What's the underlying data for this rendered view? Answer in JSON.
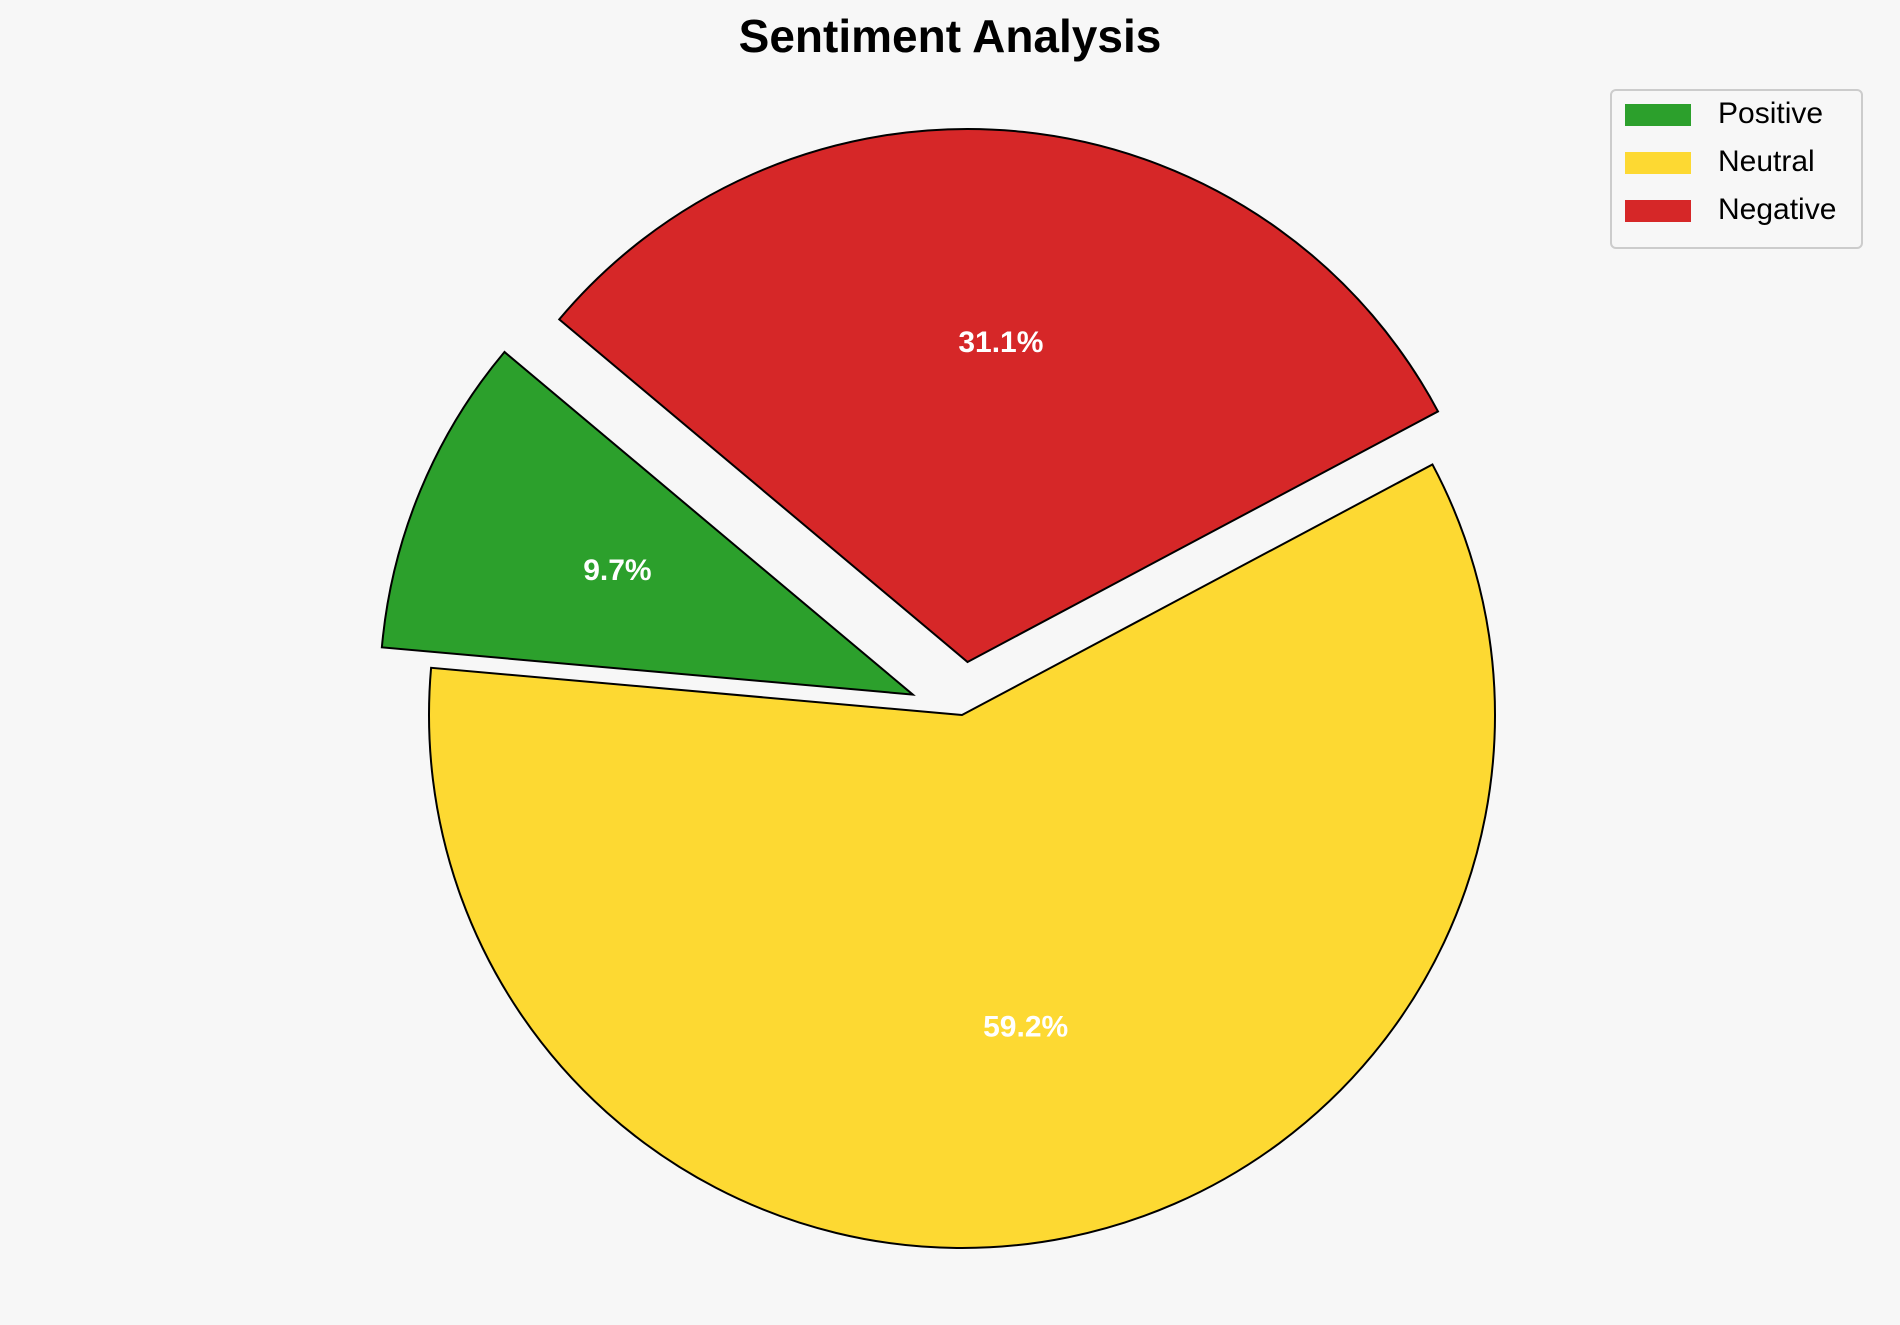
{
  "chart_data": {
    "type": "pie",
    "title": "Sentiment Analysis",
    "categories": [
      "Positive",
      "Neutral",
      "Negative"
    ],
    "values": [
      9.7,
      59.2,
      31.1
    ],
    "value_labels": [
      "9.7%",
      "59.2%",
      "31.1%"
    ],
    "colors": [
      "#2ca02c",
      "#fdd932",
      "#d62728"
    ],
    "explode": [
      0.1,
      0,
      0.1
    ],
    "legend": "upper right"
  }
}
